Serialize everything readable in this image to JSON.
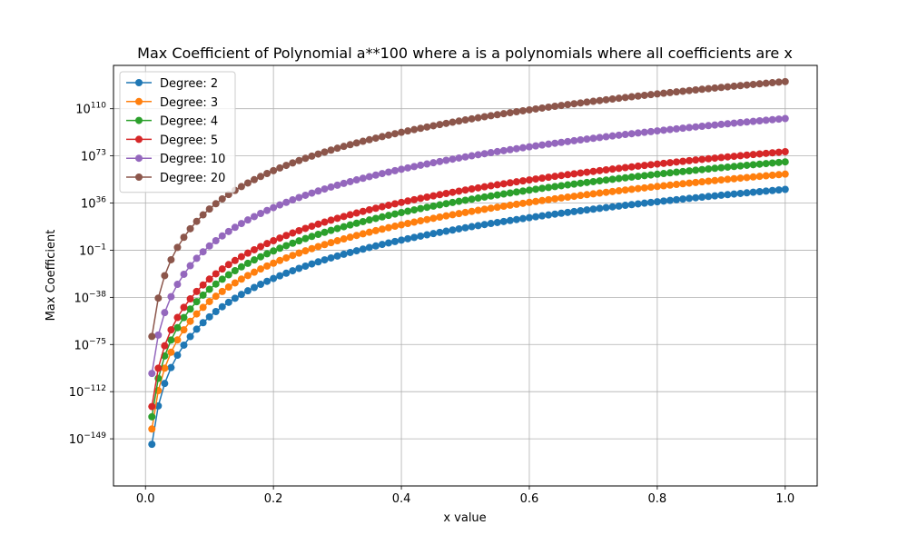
{
  "chart_data": {
    "type": "line",
    "title": "Max Coefficient of Polynomial a**100 where a is a polynomials where all coefficients are x",
    "xlabel": "x value",
    "ylabel": "Max Coefficient",
    "xlim": [
      -0.05,
      1.05
    ],
    "ylim_log10": [
      -186,
      144
    ],
    "x_ticks": [
      {
        "value": 0.0,
        "label": "0.0"
      },
      {
        "value": 0.2,
        "label": "0.2"
      },
      {
        "value": 0.4,
        "label": "0.4"
      },
      {
        "value": 0.6,
        "label": "0.6"
      },
      {
        "value": 0.8,
        "label": "0.8"
      },
      {
        "value": 1.0,
        "label": "1.0"
      }
    ],
    "y_ticks": [
      {
        "exp": 110,
        "base": "10",
        "sup": "110"
      },
      {
        "exp": 73,
        "base": "10",
        "sup": "73"
      },
      {
        "exp": 36,
        "base": "10",
        "sup": "36"
      },
      {
        "exp": -1,
        "base": "10",
        "sup": "−1"
      },
      {
        "exp": -38,
        "base": "10",
        "sup": "−38"
      },
      {
        "exp": -75,
        "base": "10",
        "sup": "−75"
      },
      {
        "exp": -112,
        "base": "10",
        "sup": "−112"
      },
      {
        "exp": -149,
        "base": "10",
        "sup": "−149"
      }
    ],
    "y_scale": "log",
    "grid": true,
    "legend_position": "top-left",
    "x_start": 0.01,
    "x_end": 1.0,
    "x_step": 0.01,
    "y_formula": "log10(y) = 100*log10(x) + log10(max coefficient of (1+t+...+t^d)^100)",
    "series": [
      {
        "name": "Degree: 2",
        "degree": 2,
        "color": "#1f77b4",
        "log10_c": 46.7
      },
      {
        "name": "Degree: 3",
        "degree": 3,
        "color": "#ff7f0e",
        "log10_c": 58.7
      },
      {
        "name": "Degree: 4",
        "degree": 4,
        "color": "#2ca02c",
        "log10_c": 68.3
      },
      {
        "name": "Degree: 5",
        "degree": 5,
        "color": "#d62728",
        "log10_c": 76.3
      },
      {
        "name": "Degree: 10",
        "degree": 10,
        "color": "#9467bd",
        "log10_c": 102.3
      },
      {
        "name": "Degree: 20",
        "degree": 20,
        "color": "#8c564b",
        "log10_c": 131.3
      }
    ]
  }
}
